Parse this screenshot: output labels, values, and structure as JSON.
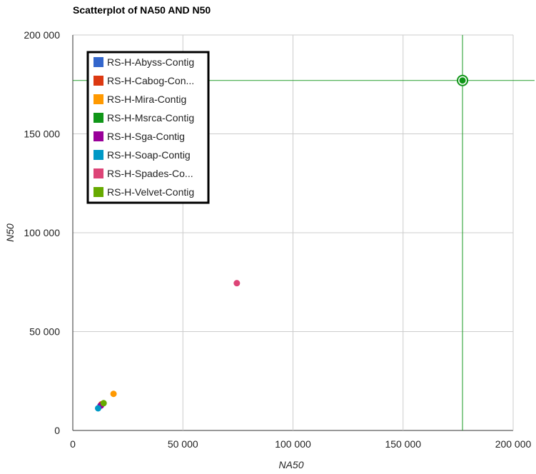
{
  "chart_data": {
    "type": "scatter",
    "title": "Scatterplot of NA50 AND N50",
    "xlabel": "NA50",
    "ylabel": "N50",
    "xlim": [
      0,
      200000
    ],
    "ylim": [
      0,
      200000
    ],
    "x_ticks": [
      0,
      50000,
      100000,
      150000,
      200000
    ],
    "y_ticks": [
      0,
      50000,
      100000,
      150000,
      200000
    ],
    "x_tick_labels": [
      "0",
      "50 000",
      "100 000",
      "150 000",
      "200 000"
    ],
    "y_tick_labels": [
      "0",
      "50 000",
      "100 000",
      "150 000",
      "200 000"
    ],
    "grid": true,
    "legend_position": "top-left",
    "series": [
      {
        "name": "RS-H-Abyss-Contig",
        "color": "#3366cc",
        "points": [
          [
            12500,
            12500
          ]
        ]
      },
      {
        "name": "RS-H-Cabog-Con...",
        "color": "#dc3912",
        "points": [
          [
            13000,
            13200
          ]
        ]
      },
      {
        "name": "RS-H-Mira-Contig",
        "color": "#ff9900",
        "points": [
          [
            18500,
            18500
          ]
        ]
      },
      {
        "name": "RS-H-Msrca-Contig",
        "color": "#109618",
        "points": [
          [
            177000,
            177000
          ]
        ],
        "highlighted": true
      },
      {
        "name": "RS-H-Sga-Contig",
        "color": "#990099",
        "points": [
          [
            12800,
            12600
          ]
        ]
      },
      {
        "name": "RS-H-Soap-Contig",
        "color": "#0099c6",
        "points": [
          [
            11500,
            11200
          ]
        ]
      },
      {
        "name": "RS-H-Spades-Co...",
        "color": "#dd4477",
        "points": [
          [
            74500,
            74500
          ]
        ]
      },
      {
        "name": "RS-H-Velvet-Contig",
        "color": "#66aa00",
        "points": [
          [
            14000,
            13800
          ]
        ]
      }
    ]
  }
}
